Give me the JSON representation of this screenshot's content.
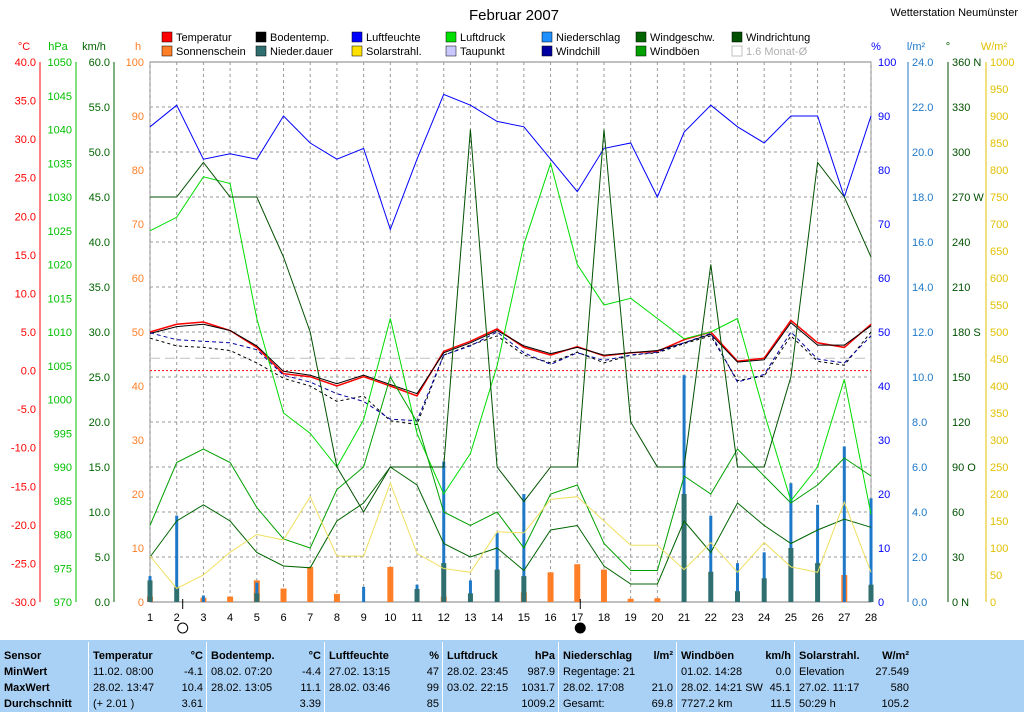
{
  "header": {
    "title": "Februar 2007",
    "station": "Wetterstation Neumünster"
  },
  "legend": [
    {
      "label": "Temperatur",
      "color": "#ff0000"
    },
    {
      "label": "Bodentemp.",
      "color": "#000000"
    },
    {
      "label": "Luftfeuchte",
      "color": "#0000ff"
    },
    {
      "label": "Luftdruck",
      "color": "#00e000"
    },
    {
      "label": "Niederschlag",
      "color": "#1e90ff"
    },
    {
      "label": "Windgeschw.",
      "color": "#006400"
    },
    {
      "label": "Windrichtung",
      "color": "#005000"
    },
    {
      "label": "Sonnenschein",
      "color": "#ff7f27"
    },
    {
      "label": "Nieder.dauer",
      "color": "#2f6f6f"
    },
    {
      "label": "Solarstrahl.",
      "color": "#ffe000"
    },
    {
      "label": "Taupunkt",
      "color": "#c8c8ff"
    },
    {
      "label": "Windchill",
      "color": "#0000a0"
    },
    {
      "label": "Windböen",
      "color": "#00a000"
    },
    {
      "label": "1.6 Monat-Ø",
      "color": "#c0c0c0"
    }
  ],
  "axes": {
    "temp": {
      "unit": "°C",
      "ticks": [
        "40.0",
        "35.0",
        "30.0",
        "25.0",
        "20.0",
        "15.0",
        "10.0",
        "5.0",
        "0.0",
        "-5.0",
        "-10.0",
        "-15.0",
        "-20.0",
        "-25.0",
        "-30.0"
      ],
      "color": "#ff0000"
    },
    "pressure": {
      "unit": "hPa",
      "ticks": [
        "1050",
        "1045",
        "1040",
        "1035",
        "1030",
        "1025",
        "1020",
        "1015",
        "1010",
        "1005",
        "1000",
        "995",
        "990",
        "985",
        "980",
        "975",
        "970"
      ],
      "color": "#00c000"
    },
    "wind": {
      "unit": "km/h",
      "ticks": [
        "60.0",
        "55.0",
        "50.0",
        "45.0",
        "40.0",
        "35.0",
        "30.0",
        "25.0",
        "20.0",
        "15.0",
        "10.0",
        "5.0",
        "0.0"
      ],
      "color": "#006400"
    },
    "hours": {
      "unit": "h",
      "ticks": [
        "100",
        "90",
        "80",
        "70",
        "60",
        "50",
        "40",
        "30",
        "20",
        "10",
        "0"
      ],
      "color": "#ff7f27"
    },
    "humidity": {
      "unit": "%",
      "ticks": [
        "100",
        "90",
        "80",
        "70",
        "60",
        "50",
        "40",
        "30",
        "20",
        "10",
        "0"
      ],
      "color": "#0000ff"
    },
    "rain": {
      "unit": "l/m²",
      "ticks": [
        "24.0",
        "22.0",
        "20.0",
        "18.0",
        "16.0",
        "14.0",
        "12.0",
        "10.0",
        "8.0",
        "6.0",
        "4.0",
        "2.0",
        "0.0"
      ],
      "color": "#1e78c8"
    },
    "direction": {
      "unit": "°",
      "ticks": [
        "360 N",
        "330",
        "300",
        "270 W",
        "240",
        "210",
        "180 S",
        "150",
        "120",
        "90 O",
        "60",
        "30",
        "0 N"
      ],
      "color": "#005000"
    },
    "solar": {
      "unit": "W/m²",
      "ticks": [
        "1000",
        "950",
        "900",
        "850",
        "800",
        "750",
        "700",
        "650",
        "600",
        "550",
        "500",
        "450",
        "400",
        "350",
        "300",
        "250",
        "200",
        "150",
        "100",
        "50",
        "0"
      ],
      "color": "#e0c000"
    }
  },
  "chart_data": {
    "type": "line",
    "title": "Februar 2007",
    "x": [
      1,
      2,
      3,
      4,
      5,
      6,
      7,
      8,
      9,
      10,
      11,
      12,
      13,
      14,
      15,
      16,
      17,
      18,
      19,
      20,
      21,
      22,
      23,
      24,
      25,
      26,
      27,
      28
    ],
    "xlim": [
      1,
      28
    ],
    "grid": true,
    "legend": "top",
    "series": [
      {
        "name": "Temperatur",
        "axis": "temp",
        "values": [
          5.0,
          6.0,
          6.3,
          5.2,
          3.0,
          -0.4,
          -0.8,
          -2.0,
          -0.8,
          -2.0,
          -3.3,
          2.5,
          3.8,
          5.4,
          3.0,
          2.0,
          3.1,
          1.9,
          2.3,
          2.5,
          4.0,
          5.0,
          1.2,
          1.6,
          6.5,
          3.6,
          3.0,
          6.0
        ]
      },
      {
        "name": "Bodentemp.",
        "axis": "temp",
        "values": [
          4.8,
          5.7,
          6.0,
          5.2,
          3.2,
          -0.1,
          -0.6,
          -1.7,
          -0.6,
          -1.8,
          -3.0,
          2.3,
          3.6,
          5.2,
          3.2,
          2.2,
          3.0,
          2.0,
          2.3,
          2.6,
          3.6,
          4.7,
          1.1,
          1.4,
          6.2,
          3.3,
          3.3,
          5.8
        ]
      },
      {
        "name": "Taupunkt",
        "axis": "temp",
        "values": [
          4.2,
          3.2,
          3.0,
          2.6,
          1.0,
          -1.0,
          -2.0,
          -4.0,
          -3.3,
          -6.5,
          -7.0,
          2.0,
          3.3,
          4.5,
          2.0,
          1.0,
          2.4,
          1.0,
          2.0,
          2.3,
          3.5,
          4.5,
          -1.3,
          -0.7,
          4.5,
          1.2,
          0.7,
          5.0
        ]
      },
      {
        "name": "Windchill",
        "axis": "temp",
        "values": [
          4.9,
          4.0,
          3.8,
          3.6,
          2.7,
          -0.6,
          -1.5,
          -3.0,
          -4.0,
          -6.3,
          -6.5,
          2.0,
          3.2,
          5.0,
          2.3,
          0.8,
          2.3,
          1.3,
          2.0,
          2.4,
          3.6,
          4.8,
          -1.5,
          -0.5,
          5.0,
          1.5,
          1.0,
          4.5
        ]
      },
      {
        "name": "Luftdruck",
        "axis": "pressure",
        "values": [
          1025,
          1027,
          1033,
          1032,
          1012,
          998,
          995,
          990,
          997,
          1012,
          995,
          986,
          992,
          1005,
          1023,
          1035,
          1020,
          1014,
          1015,
          1012,
          1009,
          1010,
          1012,
          998,
          985,
          990,
          1003,
          983
        ]
      },
      {
        "name": "Luftfeuchte",
        "axis": "humidity",
        "values": [
          88,
          92,
          82,
          83,
          82,
          90,
          85,
          82,
          84,
          69,
          82,
          94,
          92,
          89,
          88,
          82,
          76,
          84,
          85,
          75,
          87,
          92,
          88,
          85,
          90,
          90,
          75,
          90
        ]
      },
      {
        "name": "Windgeschw.",
        "axis": "wind",
        "values": [
          5.0,
          9.0,
          10.8,
          9.0,
          5.5,
          4.0,
          3.8,
          9.0,
          11.0,
          15.0,
          13.0,
          6.5,
          5.0,
          6.0,
          3.5,
          8.0,
          8.5,
          4.0,
          2.0,
          2.0,
          9.0,
          5.5,
          11.0,
          8.5,
          6.5,
          8.0,
          9.2,
          8.3
        ]
      },
      {
        "name": "Windböen",
        "axis": "wind",
        "values": [
          8.5,
          15.5,
          17.0,
          15.5,
          10.5,
          7.0,
          6.0,
          12.5,
          15.0,
          25.0,
          20.0,
          10.0,
          8.5,
          10.0,
          6.0,
          12.0,
          13.0,
          6.5,
          3.5,
          3.5,
          14.0,
          12.0,
          17.0,
          14.0,
          11.0,
          13.0,
          16.0,
          14.0
        ]
      },
      {
        "name": "Windrichtung",
        "axis": "direction",
        "values": [
          270,
          270,
          293,
          270,
          270,
          230,
          180,
          90,
          60,
          90,
          90,
          90,
          315,
          90,
          67,
          90,
          90,
          315,
          120,
          90,
          90,
          225,
          90,
          90,
          150,
          293,
          270,
          230
        ]
      },
      {
        "name": "Solarstrahl.",
        "axis": "solar",
        "values": [
          85,
          25,
          50,
          92,
          125,
          115,
          195,
          85,
          85,
          220,
          90,
          62,
          55,
          130,
          128,
          190,
          195,
          150,
          105,
          105,
          60,
          110,
          55,
          110,
          65,
          55,
          185,
          55
        ]
      }
    ],
    "bars": [
      {
        "name": "Sonnenschein",
        "axis": "hours",
        "values": [
          1.0,
          0,
          0.8,
          1.0,
          4.0,
          2.5,
          6.5,
          1.5,
          0,
          6.5,
          0,
          1.0,
          0,
          0,
          1.8,
          5.5,
          7.0,
          6.0,
          0.6,
          0.7,
          0,
          0,
          0,
          0,
          0,
          0,
          5.0,
          0
        ]
      },
      {
        "name": "Niederschlag",
        "axis": "rain",
        "values": [
          1.2,
          4.0,
          0.3,
          0,
          0.9,
          0,
          0,
          0,
          0.7,
          0,
          0.8,
          6.5,
          1.0,
          3.2,
          5.0,
          0,
          0,
          0,
          0,
          0,
          10.5,
          4.0,
          1.8,
          2.3,
          5.5,
          4.5,
          7.2,
          4.8
        ]
      },
      {
        "name": "Nieder.dauer",
        "axis": "rain",
        "values": [
          1.0,
          0.7,
          0,
          0,
          0.4,
          0,
          0,
          0,
          0,
          0,
          0.6,
          1.8,
          0.4,
          1.5,
          1.2,
          0,
          0,
          0,
          0,
          0,
          5.0,
          1.4,
          0.5,
          1.1,
          2.5,
          1.8,
          0,
          0.8
        ]
      }
    ],
    "reference": {
      "name": "1.6 Monat-Ø",
      "axis": "temp",
      "value": 1.6
    }
  },
  "stats": {
    "columns": [
      {
        "name": "sensor",
        "rows": [
          {
            "t": "Sensor"
          },
          {
            "t": "MinWert"
          },
          {
            "t": "MaxWert"
          },
          {
            "t": "Durchschnitt"
          }
        ]
      },
      {
        "name": "temperatur",
        "header": "Temperatur",
        "unit": "°C",
        "rows": [
          {
            "t": "11.02.  08:00",
            "v": "-4.1"
          },
          {
            "t": "28.02.  13:47",
            "v": "10.4"
          },
          {
            "t": "(+ 2.01 )",
            "v": "3.61"
          }
        ]
      },
      {
        "name": "bodentemp",
        "header": "Bodentemp.",
        "unit": "°C",
        "rows": [
          {
            "t": "08.02.  07:20",
            "v": "-4.4"
          },
          {
            "t": "28.02.  13:05",
            "v": "11.1"
          },
          {
            "t": "",
            "v": "3.39"
          }
        ]
      },
      {
        "name": "luftfeuchte",
        "header": "Luftfeuchte",
        "unit": "%",
        "rows": [
          {
            "t": "27.02.  13:15",
            "v": "47"
          },
          {
            "t": "28.02.  03:46",
            "v": "99"
          },
          {
            "t": "",
            "v": "85"
          }
        ]
      },
      {
        "name": "luftdruck",
        "header": "Luftdruck",
        "unit": "hPa",
        "rows": [
          {
            "t": "28.02.  23:45",
            "v": "987.9"
          },
          {
            "t": "03.02.  22:15",
            "v": "1031.7"
          },
          {
            "t": "",
            "v": "1009.2"
          }
        ]
      },
      {
        "name": "niederschlag",
        "header": "Niederschlag",
        "unit": "l/m²",
        "rows": [
          {
            "t": "Regentage: 21",
            "v": ""
          },
          {
            "t": "28.02.  17:08",
            "v": "21.0"
          },
          {
            "t": "Gesamt:",
            "v": "69.8"
          }
        ]
      },
      {
        "name": "windboeen",
        "header": "Windböen",
        "unit": "km/h",
        "rows": [
          {
            "t": "01.02.  14:28",
            "v": "0.0"
          },
          {
            "t": "28.02.  14:21 SW",
            "v": "45.1"
          },
          {
            "t": "7727.2 km",
            "v": "11.5"
          }
        ]
      },
      {
        "name": "solarstrahl",
        "header": "Solarstrahl.",
        "unit": "W/m²",
        "rows": [
          {
            "t": "Elevation",
            "v": "27.549"
          },
          {
            "t": "27.02.  11:17",
            "v": "580"
          },
          {
            "t": "50:29 h",
            "v": "105.2"
          }
        ]
      }
    ]
  }
}
